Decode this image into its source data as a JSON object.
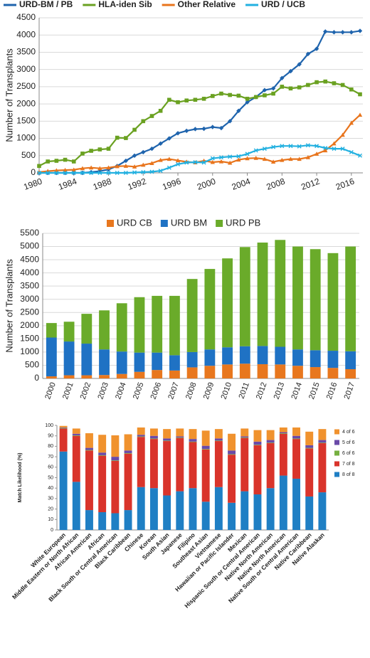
{
  "chart_data": [
    {
      "type": "line",
      "ylabel": "Number of Transplants",
      "x": [
        1980,
        1981,
        1982,
        1983,
        1984,
        1985,
        1986,
        1987,
        1988,
        1989,
        1990,
        1991,
        1992,
        1993,
        1994,
        1995,
        1996,
        1997,
        1998,
        1999,
        2000,
        2001,
        2002,
        2003,
        2004,
        2005,
        2006,
        2007,
        2008,
        2009,
        2010,
        2011,
        2012,
        2013,
        2014,
        2015,
        2016,
        2017
      ],
      "series": [
        {
          "name": "URD-BM / PB",
          "color": "#1f64ad",
          "marker": "diamond",
          "values": [
            0,
            0,
            0,
            0,
            0,
            0,
            20,
            50,
            100,
            200,
            350,
            500,
            600,
            700,
            850,
            1000,
            1150,
            1220,
            1270,
            1280,
            1330,
            1300,
            1500,
            1800,
            2050,
            2200,
            2400,
            2450,
            2750,
            2950,
            3150,
            3450,
            3600,
            4100,
            4080,
            4080,
            4080,
            4120
          ]
        },
        {
          "name": "HLA-iden Sib",
          "color": "#6aa121",
          "marker": "square",
          "values": [
            200,
            330,
            350,
            380,
            330,
            560,
            640,
            680,
            700,
            1020,
            1010,
            1250,
            1500,
            1650,
            1800,
            2120,
            2050,
            2100,
            2120,
            2150,
            2230,
            2300,
            2260,
            2240,
            2150,
            2200,
            2250,
            2300,
            2500,
            2450,
            2480,
            2550,
            2630,
            2650,
            2600,
            2550,
            2420,
            2280
          ]
        },
        {
          "name": "Other Relative",
          "color": "#e8741c",
          "marker": "triangle",
          "values": [
            20,
            50,
            70,
            80,
            90,
            130,
            150,
            130,
            150,
            190,
            200,
            180,
            230,
            280,
            370,
            400,
            360,
            320,
            300,
            350,
            310,
            330,
            290,
            380,
            420,
            430,
            400,
            320,
            370,
            400,
            400,
            450,
            550,
            650,
            850,
            1100,
            1450,
            1680
          ]
        },
        {
          "name": "URD / UCB",
          "color": "#22b0e0",
          "marker": "x",
          "values": [
            0,
            0,
            0,
            0,
            0,
            0,
            0,
            0,
            0,
            0,
            0,
            10,
            20,
            30,
            60,
            150,
            250,
            300,
            310,
            300,
            420,
            450,
            470,
            480,
            550,
            650,
            700,
            750,
            780,
            780,
            770,
            800,
            780,
            720,
            700,
            700,
            600,
            500
          ]
        }
      ],
      "xlim": [
        1980,
        2017
      ],
      "xticks": [
        1980,
        1984,
        1988,
        1992,
        1996,
        2000,
        2004,
        2008,
        2012,
        2016
      ],
      "ylim": [
        0,
        4500
      ],
      "yticks": [
        0,
        500,
        1000,
        1500,
        2000,
        2500,
        3000,
        3500,
        4000,
        4500
      ],
      "grid": true
    },
    {
      "type": "stacked_bar",
      "ylabel": "Number of Transplants",
      "categories": [
        "2000",
        "2001",
        "2002",
        "2003",
        "2004",
        "2005",
        "2006",
        "2007",
        "2008",
        "2009",
        "2010",
        "2011",
        "2012",
        "2013",
        "2014",
        "2015",
        "2016",
        "2017"
      ],
      "series": [
        {
          "name": "URD CB",
          "color": "#e8771e",
          "values": [
            80,
            120,
            120,
            130,
            170,
            250,
            320,
            300,
            420,
            480,
            530,
            560,
            540,
            530,
            480,
            430,
            400,
            350
          ]
        },
        {
          "name": "URD BM",
          "color": "#1f72c4",
          "values": [
            1470,
            1280,
            1200,
            970,
            850,
            730,
            660,
            580,
            580,
            620,
            650,
            660,
            690,
            670,
            620,
            640,
            650,
            680
          ]
        },
        {
          "name": "URD PB",
          "color": "#6aab2a",
          "values": [
            550,
            750,
            1130,
            1480,
            1830,
            2100,
            2150,
            2250,
            2770,
            3050,
            3370,
            3760,
            3920,
            4050,
            3900,
            3830,
            3700,
            3970
          ]
        }
      ],
      "ylim": [
        0,
        5500
      ],
      "yticks": [
        0,
        500,
        1000,
        1500,
        2000,
        2500,
        3000,
        3500,
        4000,
        4500,
        5000,
        5500
      ],
      "grid": true
    },
    {
      "type": "stacked_bar",
      "ylabel": "Match Likelihood (%)",
      "categories": [
        "White European",
        "Middle Eastern or North African",
        "African American",
        "African",
        "Black South or Central American",
        "Black Caribbean",
        "Chinese",
        "Korean",
        "South Asian",
        "Japanese",
        "Filipino",
        "Southeast Asian",
        "Vietnamese",
        "Hawaiian or Pacific Islander",
        "Mexican",
        "Hispanic South or Central American",
        "Native North American",
        "Native North American",
        "Native South or Central American",
        "Native Caribbean",
        "Native Alaskan"
      ],
      "series": [
        {
          "name": "8 of 8",
          "color": "#1f7fc4",
          "values": [
            75,
            46,
            19,
            17,
            16,
            19,
            41,
            40,
            33,
            37,
            40,
            27,
            41,
            26,
            37,
            34,
            40,
            52,
            49,
            32,
            36
          ]
        },
        {
          "name": "7 of 8",
          "color": "#d9342b",
          "values": [
            22,
            44,
            57,
            54,
            50,
            54,
            48,
            47,
            52,
            51,
            44,
            50,
            44,
            46,
            51,
            47,
            43,
            40,
            38,
            46,
            47
          ]
        },
        {
          "name": "6 of 6",
          "color": "#76b041",
          "values": [
            0.5,
            0.5,
            0.5,
            0.5,
            0.5,
            0.5,
            0.5,
            0.5,
            0.5,
            0.5,
            0.5,
            0.5,
            0.5,
            0.5,
            0.5,
            0.5,
            0.5,
            0.5,
            0.5,
            0.5,
            0.5
          ]
        },
        {
          "name": "5 of 6",
          "color": "#6a4aa8",
          "values": [
            0.5,
            1.5,
            2,
            2.5,
            3.5,
            2.5,
            1.5,
            2.5,
            2,
            1,
            2.5,
            3,
            2,
            3.5,
            1,
            3,
            2.5,
            1,
            2.5,
            2.5,
            2.5
          ]
        },
        {
          "name": "4 of 6",
          "color": "#f0922e",
          "values": [
            1.5,
            5,
            14,
            17,
            20.5,
            15.5,
            7,
            7,
            9,
            7.5,
            9.5,
            14.5,
            9,
            16,
            7.5,
            11,
            9.5,
            4.5,
            8,
            13,
            10.5
          ]
        }
      ],
      "ylim": [
        0,
        100
      ],
      "yticks": [
        0,
        10,
        20,
        30,
        40,
        50,
        60,
        70,
        80,
        90,
        100
      ],
      "grid": false,
      "legend": "right",
      "legend_order": "reversed"
    }
  ]
}
